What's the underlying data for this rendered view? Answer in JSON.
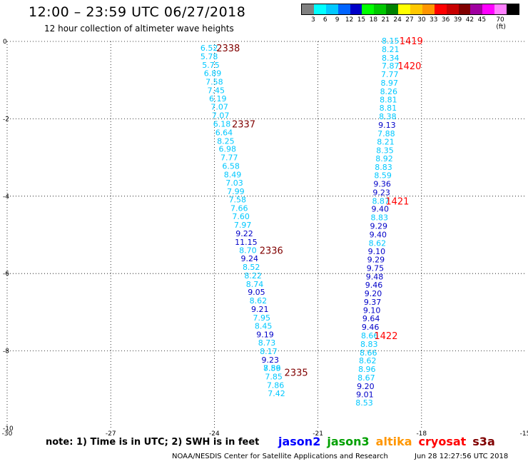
{
  "header": {
    "title": "12:00 – 23:59 UTC 06/27/2018",
    "subtitle": "12 hour collection of altimeter wave heights"
  },
  "legend": {
    "colors": [
      "#808080",
      "#00ffff",
      "#00c8ff",
      "#0064ff",
      "#0000c8",
      "#00ff00",
      "#00c800",
      "#008200",
      "#ffff00",
      "#ffc800",
      "#ff9600",
      "#ff0000",
      "#c80000",
      "#800000",
      "#a000a0",
      "#ff00ff",
      "#ff80ff",
      "#000000"
    ],
    "labels": [
      "3",
      "6",
      "9",
      "12",
      "15",
      "18",
      "21",
      "24",
      "27",
      "30",
      "33",
      "36",
      "39",
      "42",
      "45",
      "70 (ft)"
    ]
  },
  "footer": {
    "note": "note:  1) Time is in UTC;  2) SWH is in feet",
    "missions": [
      {
        "name": "jason2",
        "color": "#0000ff"
      },
      {
        "name": "jason3",
        "color": "#00a000"
      },
      {
        "name": "altika",
        "color": "#ff9600"
      },
      {
        "name": "cryosat",
        "color": "#ff0000"
      },
      {
        "name": "s3a",
        "color": "#800000"
      }
    ],
    "credit": "NOAA/NESDIS Center for Satellite Applications and Research",
    "timestamp": "Jun 28 12:27:56 UTC 2018"
  },
  "chart_data": {
    "type": "scatter",
    "xlim": [
      -30,
      -15
    ],
    "ylim": [
      -10,
      0
    ],
    "x_ticks": [
      "-30",
      "-27",
      "-24",
      "-21",
      "-18",
      "-15"
    ],
    "y_ticks": [
      "0",
      "-2",
      "-4",
      "-6",
      "-8",
      "-10"
    ],
    "x_tick_values": [
      -30,
      -27,
      -24,
      -21,
      -18,
      -15
    ],
    "y_tick_values": [
      0,
      -2,
      -4,
      -6,
      -8,
      -10
    ],
    "grid": true,
    "series": [
      {
        "color": "#00d2ff",
        "points": [
          {
            "x": -24.15,
            "y": -0.17,
            "label": "6.52"
          },
          {
            "x": -24.15,
            "y": -0.39,
            "label": "5.78"
          },
          {
            "x": -24.1,
            "y": -0.61,
            "label": "5.75"
          },
          {
            "x": -24.05,
            "y": -0.82,
            "label": "6.89"
          },
          {
            "x": -24.0,
            "y": -1.04,
            "label": "7.58"
          },
          {
            "x": -23.95,
            "y": -1.26,
            "label": "7.45"
          },
          {
            "x": -23.9,
            "y": -1.48,
            "label": "6.19"
          },
          {
            "x": -23.85,
            "y": -1.69,
            "label": "7.07"
          },
          {
            "x": -23.82,
            "y": -1.91,
            "label": "7.07"
          },
          {
            "x": -23.78,
            "y": -2.13,
            "label": "6.18"
          },
          {
            "x": -23.72,
            "y": -2.35,
            "label": "6.64"
          },
          {
            "x": -23.67,
            "y": -2.57,
            "label": "8.25"
          },
          {
            "x": -23.62,
            "y": -2.78,
            "label": "6.98"
          },
          {
            "x": -23.57,
            "y": -3.0,
            "label": "7.77"
          },
          {
            "x": -23.52,
            "y": -3.22,
            "label": "6.58"
          },
          {
            "x": -23.47,
            "y": -3.44,
            "label": "8.49"
          },
          {
            "x": -23.42,
            "y": -3.65,
            "label": "7.03"
          },
          {
            "x": -23.38,
            "y": -3.87,
            "label": "7.99"
          },
          {
            "x": -23.33,
            "y": -4.09,
            "label": "7.58"
          },
          {
            "x": -23.28,
            "y": -4.31,
            "label": "7.66"
          },
          {
            "x": -23.23,
            "y": -4.52,
            "label": "7.60"
          },
          {
            "x": -23.18,
            "y": -4.74,
            "label": "7.97"
          },
          {
            "x": -23.13,
            "y": -4.96,
            "label": "9.22"
          },
          {
            "x": -23.08,
            "y": -5.18,
            "label": "11.15"
          },
          {
            "x": -23.03,
            "y": -5.4,
            "label": "8.70"
          },
          {
            "x": -22.98,
            "y": -5.61,
            "label": "9.24"
          },
          {
            "x": -22.93,
            "y": -5.83,
            "label": "8.52"
          },
          {
            "x": -22.88,
            "y": -6.05,
            "label": "8.22"
          },
          {
            "x": -22.83,
            "y": -6.27,
            "label": "8.74"
          },
          {
            "x": -22.78,
            "y": -6.48,
            "label": "9.05"
          },
          {
            "x": -22.73,
            "y": -6.7,
            "label": "8.62"
          },
          {
            "x": -22.68,
            "y": -6.92,
            "label": "9.21"
          },
          {
            "x": -22.63,
            "y": -7.14,
            "label": "7.95"
          },
          {
            "x": -22.58,
            "y": -7.35,
            "label": "8.45"
          },
          {
            "x": -22.53,
            "y": -7.57,
            "label": "9.19"
          },
          {
            "x": -22.48,
            "y": -7.79,
            "label": "8.73"
          },
          {
            "x": -22.43,
            "y": -8.01,
            "label": "8.17"
          },
          {
            "x": -22.38,
            "y": -8.23,
            "label": "9.23"
          },
          {
            "x": -22.33,
            "y": -8.44,
            "label": "8.56"
          },
          {
            "x": -22.33,
            "y": -8.44,
            "label": "7.89"
          },
          {
            "x": -22.28,
            "y": -8.66,
            "label": "7.85"
          },
          {
            "x": -22.23,
            "y": -8.88,
            "label": "7.86"
          },
          {
            "x": -22.2,
            "y": -9.1,
            "label": "7.42"
          }
        ],
        "point_colors": [
          "c",
          "c",
          "c",
          "c",
          "c",
          "c",
          "c",
          "c",
          "c",
          "c",
          "c",
          "c",
          "c",
          "c",
          "c",
          "c",
          "c",
          "c",
          "c",
          "c",
          "c",
          "c",
          "b",
          "d",
          "c",
          "b",
          "c",
          "c",
          "c",
          "b",
          "c",
          "d",
          "c",
          "c",
          "b",
          "c",
          "c",
          "b",
          "c",
          "c",
          "c",
          "c",
          "c"
        ]
      },
      {
        "color": "#00d2ff",
        "points": [
          {
            "x": -18.9,
            "y": 0.02,
            "label": "8.15"
          },
          {
            "x": -18.9,
            "y": -0.2,
            "label": "8.21"
          },
          {
            "x": -18.9,
            "y": -0.42,
            "label": "8.34"
          },
          {
            "x": -18.9,
            "y": -0.63,
            "label": "7.87"
          },
          {
            "x": -18.92,
            "y": -0.85,
            "label": "7.77"
          },
          {
            "x": -18.93,
            "y": -1.07,
            "label": "8.97"
          },
          {
            "x": -18.95,
            "y": -1.29,
            "label": "8.26"
          },
          {
            "x": -18.96,
            "y": -1.5,
            "label": "8.81"
          },
          {
            "x": -18.97,
            "y": -1.72,
            "label": "8.81"
          },
          {
            "x": -18.98,
            "y": -1.94,
            "label": "8.38"
          },
          {
            "x": -19.0,
            "y": -2.16,
            "label": "9.13"
          },
          {
            "x": -19.02,
            "y": -2.38,
            "label": "7.88"
          },
          {
            "x": -19.04,
            "y": -2.59,
            "label": "8.21"
          },
          {
            "x": -19.06,
            "y": -2.81,
            "label": "8.35"
          },
          {
            "x": -19.08,
            "y": -3.03,
            "label": "8.92"
          },
          {
            "x": -19.1,
            "y": -3.25,
            "label": "8.83"
          },
          {
            "x": -19.12,
            "y": -3.46,
            "label": "8.59"
          },
          {
            "x": -19.14,
            "y": -3.68,
            "label": "9.36"
          },
          {
            "x": -19.16,
            "y": -3.9,
            "label": "9.23"
          },
          {
            "x": -19.18,
            "y": -4.12,
            "label": "8.87"
          },
          {
            "x": -19.2,
            "y": -4.33,
            "label": "9.40"
          },
          {
            "x": -19.22,
            "y": -4.55,
            "label": "8.83"
          },
          {
            "x": -19.24,
            "y": -4.77,
            "label": "9.29"
          },
          {
            "x": -19.26,
            "y": -4.99,
            "label": "9.40"
          },
          {
            "x": -19.28,
            "y": -5.21,
            "label": "8.62"
          },
          {
            "x": -19.3,
            "y": -5.42,
            "label": "9.10"
          },
          {
            "x": -19.32,
            "y": -5.64,
            "label": "9.29"
          },
          {
            "x": -19.34,
            "y": -5.86,
            "label": "9.75"
          },
          {
            "x": -19.36,
            "y": -6.08,
            "label": "9.48"
          },
          {
            "x": -19.38,
            "y": -6.29,
            "label": "9.46"
          },
          {
            "x": -19.4,
            "y": -6.51,
            "label": "9.20"
          },
          {
            "x": -19.42,
            "y": -6.73,
            "label": "9.37"
          },
          {
            "x": -19.44,
            "y": -6.95,
            "label": "9.10"
          },
          {
            "x": -19.46,
            "y": -7.16,
            "label": "9.64"
          },
          {
            "x": -19.48,
            "y": -7.38,
            "label": "9.46"
          },
          {
            "x": -19.5,
            "y": -7.6,
            "label": "8.66"
          },
          {
            "x": -19.52,
            "y": -7.82,
            "label": "8.83"
          },
          {
            "x": -19.54,
            "y": -8.04,
            "label": "8.66"
          },
          {
            "x": -19.56,
            "y": -8.25,
            "label": "8.62"
          },
          {
            "x": -19.58,
            "y": -8.47,
            "label": "8.96"
          },
          {
            "x": -19.6,
            "y": -8.69,
            "label": "8.67"
          },
          {
            "x": -19.62,
            "y": -8.91,
            "label": "9.20"
          },
          {
            "x": -19.64,
            "y": -9.12,
            "label": "9.01"
          },
          {
            "x": -19.66,
            "y": -9.34,
            "label": "8.53"
          }
        ],
        "point_colors": [
          "c",
          "c",
          "c",
          "c",
          "c",
          "c",
          "c",
          "c",
          "c",
          "c",
          "b",
          "c",
          "c",
          "c",
          "c",
          "c",
          "c",
          "b",
          "b",
          "c",
          "b",
          "c",
          "b",
          "b",
          "c",
          "b",
          "b",
          "b",
          "b",
          "b",
          "b",
          "b",
          "b",
          "b",
          "b",
          "c",
          "c",
          "c",
          "c",
          "c",
          "c",
          "b",
          "b",
          "c"
        ]
      }
    ],
    "tracks": [
      {
        "label": "2338",
        "x": -23.6,
        "y": -0.17,
        "color": "#800000"
      },
      {
        "label": "2337",
        "x": -23.15,
        "y": -2.13,
        "color": "#800000"
      },
      {
        "label": "2336",
        "x": -22.35,
        "y": -5.4,
        "color": "#800000"
      },
      {
        "label": "2335",
        "x": -21.63,
        "y": -8.55,
        "color": "#800000"
      },
      {
        "label": "1419",
        "x": -18.3,
        "y": 0.02,
        "color": "#ff0000"
      },
      {
        "label": "1420",
        "x": -18.35,
        "y": -0.63,
        "color": "#ff0000"
      },
      {
        "label": "1421",
        "x": -18.7,
        "y": -4.12,
        "color": "#ff0000"
      },
      {
        "label": "1422",
        "x": -19.03,
        "y": -7.6,
        "color": "#ff0000"
      }
    ]
  }
}
